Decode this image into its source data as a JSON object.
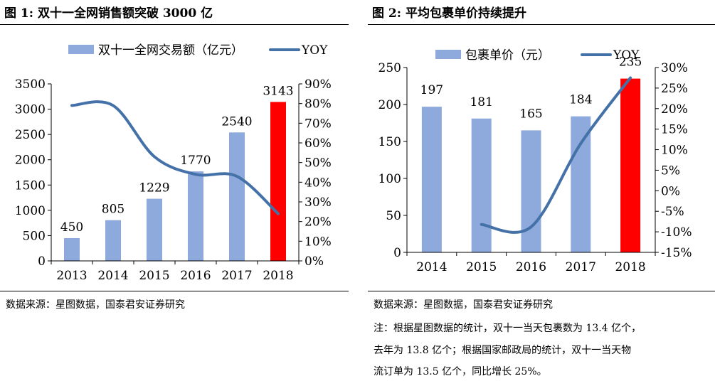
{
  "figure1": {
    "title": "图 1:  双十一全网销售额突破 3000 亿",
    "source": "数据来源：星图数据，国泰君安证券研究",
    "chart_data": {
      "type": "bar",
      "categories": [
        "2013",
        "2014",
        "2015",
        "2016",
        "2017",
        "2018"
      ],
      "series": [
        {
          "name": "双十一全网交易额（亿元）",
          "type": "bar",
          "axis": "left",
          "values": [
            450,
            805,
            1229,
            1770,
            2540,
            3143
          ],
          "colors": [
            "#8EA9DB",
            "#8EA9DB",
            "#8EA9DB",
            "#8EA9DB",
            "#8EA9DB",
            "#FF0000"
          ]
        },
        {
          "name": "YOY",
          "type": "line",
          "axis": "right",
          "values": [
            79,
            79,
            53,
            44,
            43,
            24
          ],
          "color": "#4472A8"
        }
      ],
      "data_labels": [
        "450",
        "805",
        "1229",
        "1770",
        "2540",
        "3143"
      ],
      "ylim": [
        0,
        3500
      ],
      "y_ticks": [
        "0",
        "500",
        "1000",
        "1500",
        "2000",
        "2500",
        "3000",
        "3500"
      ],
      "y2lim": [
        0,
        90
      ],
      "y2_ticks": [
        "0%",
        "10%",
        "20%",
        "30%",
        "40%",
        "50%",
        "60%",
        "70%",
        "80%",
        "90%"
      ],
      "legend": "top"
    }
  },
  "figure2": {
    "title": "图 2:    平均包裹单价持续提升",
    "source": "数据来源：星图数据，国泰君安证券研究",
    "notes": [
      "注：根据星图数据的统计，双十一当天包裹数为 13.4 亿个，",
      "去年为  13.8  亿个；根据国家邮政局的统计，双十一当天物",
      "流订单为 13.5 亿个，同比增长 25%。"
    ],
    "chart_data": {
      "type": "bar",
      "categories": [
        "2014",
        "2015",
        "2016",
        "2017",
        "2018"
      ],
      "series": [
        {
          "name": "包裹单价（元）",
          "type": "bar",
          "axis": "left",
          "values": [
            197,
            181,
            165,
            184,
            235
          ],
          "colors": [
            "#8EA9DB",
            "#8EA9DB",
            "#8EA9DB",
            "#8EA9DB",
            "#FF0000"
          ]
        },
        {
          "name": "YOY",
          "type": "line",
          "axis": "right",
          "values": [
            null,
            -8.2,
            -8.8,
            11.5,
            27.5
          ],
          "color": "#4472A8"
        }
      ],
      "data_labels": [
        "197",
        "181",
        "165",
        "184",
        "235"
      ],
      "ylim": [
        0,
        250
      ],
      "y_ticks": [
        "0",
        "50",
        "100",
        "150",
        "200",
        "250"
      ],
      "y2lim": [
        -15,
        30
      ],
      "y2_ticks": [
        "-15%",
        "-10%",
        "-5%",
        "0%",
        "5%",
        "10%",
        "15%",
        "20%",
        "25%",
        "30%"
      ],
      "legend": "top"
    }
  }
}
